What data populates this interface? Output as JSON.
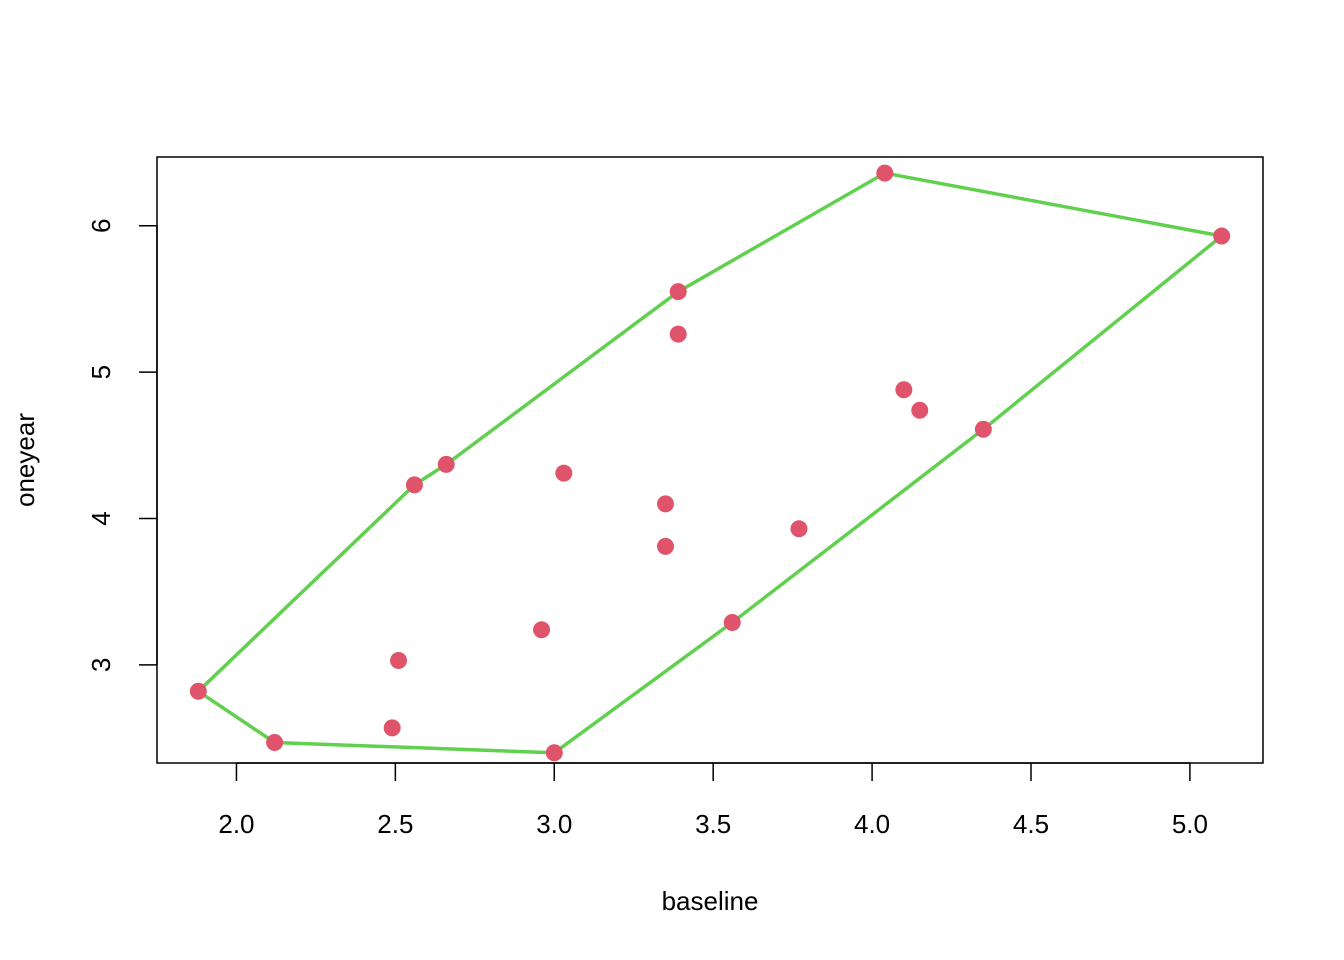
{
  "chart_data": {
    "type": "scatter",
    "title": "",
    "xlabel": "baseline",
    "ylabel": "oneyear",
    "xlim": [
      1.75,
      5.23
    ],
    "ylim": [
      2.33,
      6.47
    ],
    "xticks": [
      2.0,
      2.5,
      3.0,
      3.5,
      4.0,
      4.5,
      5.0
    ],
    "xtick_labels": [
      "2.0",
      "2.5",
      "3.0",
      "3.5",
      "4.0",
      "4.5",
      "5.0"
    ],
    "yticks": [
      3,
      4,
      5,
      6
    ],
    "ytick_labels": [
      "3",
      "4",
      "5",
      "6"
    ],
    "grid": false,
    "legend": "none",
    "colors": {
      "points": "#df536b",
      "hull": "#61d04f",
      "frame": "#000000"
    },
    "points": [
      {
        "x": 1.88,
        "y": 2.82
      },
      {
        "x": 2.12,
        "y": 2.47
      },
      {
        "x": 2.49,
        "y": 2.57
      },
      {
        "x": 2.51,
        "y": 3.03
      },
      {
        "x": 2.56,
        "y": 4.23
      },
      {
        "x": 2.66,
        "y": 4.37
      },
      {
        "x": 2.96,
        "y": 3.24
      },
      {
        "x": 3.0,
        "y": 2.4
      },
      {
        "x": 3.03,
        "y": 4.31
      },
      {
        "x": 3.35,
        "y": 4.1
      },
      {
        "x": 3.35,
        "y": 3.81
      },
      {
        "x": 3.39,
        "y": 5.55
      },
      {
        "x": 3.39,
        "y": 5.26
      },
      {
        "x": 3.56,
        "y": 3.29
      },
      {
        "x": 3.77,
        "y": 3.93
      },
      {
        "x": 4.04,
        "y": 6.36
      },
      {
        "x": 4.1,
        "y": 4.88
      },
      {
        "x": 4.15,
        "y": 4.74
      },
      {
        "x": 4.35,
        "y": 4.61
      },
      {
        "x": 5.1,
        "y": 5.93
      }
    ],
    "hull": [
      {
        "x": 1.88,
        "y": 2.82
      },
      {
        "x": 2.56,
        "y": 4.23
      },
      {
        "x": 2.66,
        "y": 4.37
      },
      {
        "x": 3.39,
        "y": 5.55
      },
      {
        "x": 4.04,
        "y": 6.36
      },
      {
        "x": 5.1,
        "y": 5.93
      },
      {
        "x": 4.35,
        "y": 4.61
      },
      {
        "x": 3.56,
        "y": 3.29
      },
      {
        "x": 3.0,
        "y": 2.4
      },
      {
        "x": 2.12,
        "y": 2.47
      },
      {
        "x": 1.88,
        "y": 2.82
      }
    ]
  }
}
